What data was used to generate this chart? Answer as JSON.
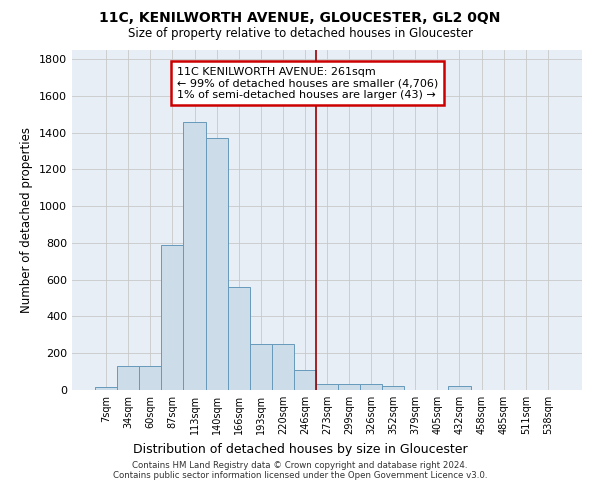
{
  "title": "11C, KENILWORTH AVENUE, GLOUCESTER, GL2 0QN",
  "subtitle": "Size of property relative to detached houses in Gloucester",
  "xlabel": "Distribution of detached houses by size in Gloucester",
  "ylabel": "Number of detached properties",
  "bar_color": "#ccdce8",
  "bar_edge_color": "#6699bb",
  "bg_color": "#ffffff",
  "plot_bg_color": "#e8eef5",
  "grid_color": "#c8c8c8",
  "bin_labels": [
    "7sqm",
    "34sqm",
    "60sqm",
    "87sqm",
    "113sqm",
    "140sqm",
    "166sqm",
    "193sqm",
    "220sqm",
    "246sqm",
    "273sqm",
    "299sqm",
    "326sqm",
    "352sqm",
    "379sqm",
    "405sqm",
    "432sqm",
    "458sqm",
    "485sqm",
    "511sqm",
    "538sqm"
  ],
  "bar_heights": [
    15,
    130,
    130,
    790,
    1460,
    1370,
    560,
    250,
    250,
    110,
    35,
    30,
    30,
    20,
    0,
    0,
    20,
    0,
    0,
    0,
    0
  ],
  "vline_color": "#990000",
  "vline_x": 10.0,
  "annotation_text": "11C KENILWORTH AVENUE: 261sqm\n← 99% of detached houses are smaller (4,706)\n1% of semi-detached houses are larger (43) →",
  "annotation_box_color": "#ffffff",
  "annotation_border_color": "#cc0000",
  "ylim": [
    0,
    1850
  ],
  "yticks": [
    0,
    200,
    400,
    600,
    800,
    1000,
    1200,
    1400,
    1600,
    1800
  ],
  "footer_line1": "Contains HM Land Registry data © Crown copyright and database right 2024.",
  "footer_line2": "Contains public sector information licensed under the Open Government Licence v3.0."
}
